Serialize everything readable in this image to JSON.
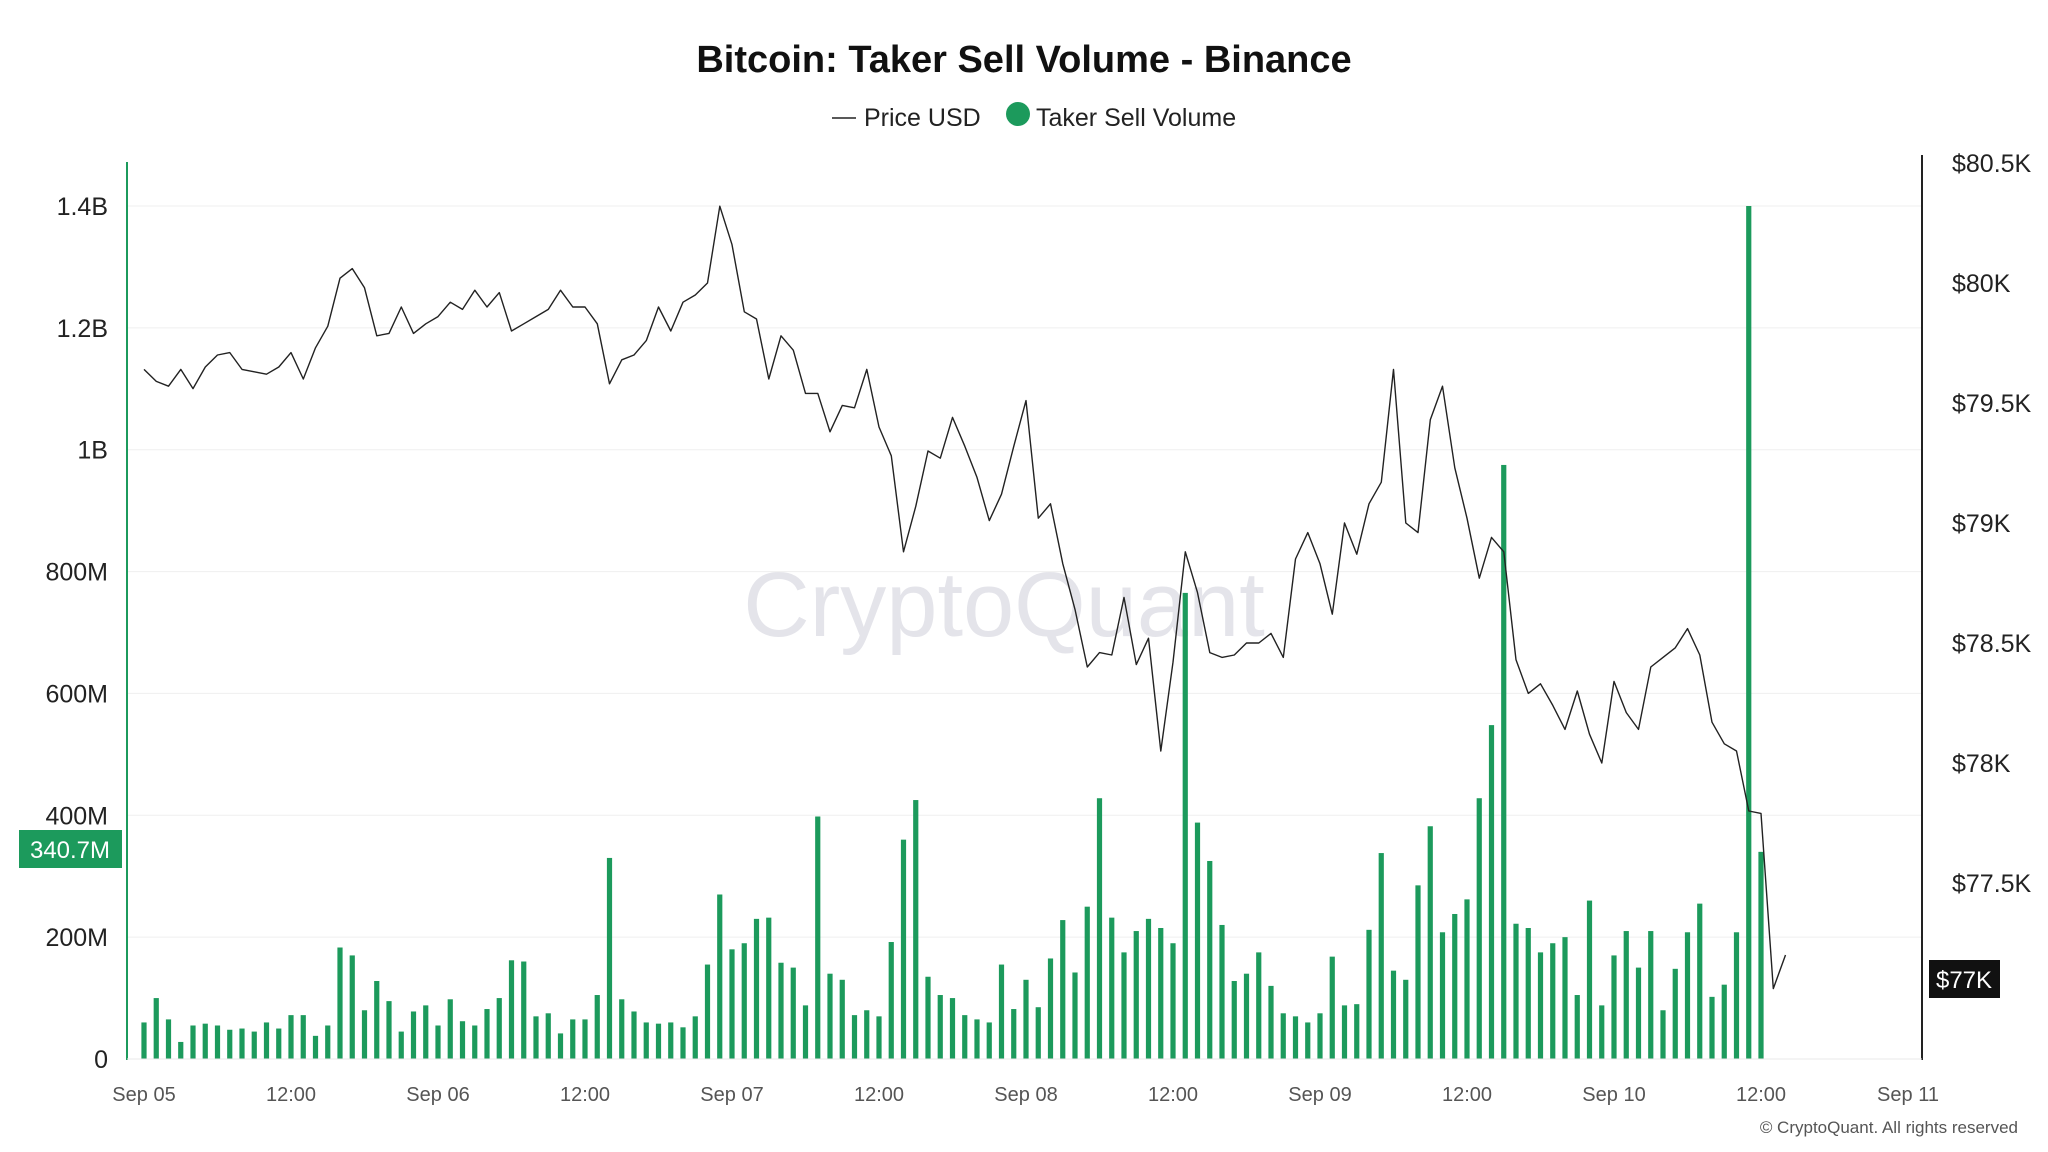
{
  "chart_data": {
    "type": "bar+line",
    "title": "Bitcoin: Taker Sell Volume - Binance",
    "legend": [
      {
        "name": "Price USD",
        "symbol": "line",
        "color": "#222222"
      },
      {
        "name": "Taker Sell Volume",
        "symbol": "dot",
        "color": "#1c9a5c"
      }
    ],
    "legend_position": "top-center",
    "grid": "horizontal",
    "watermark": "CryptoQuant",
    "copyright": "© CryptoQuant. All rights reserved",
    "x_ticks": [
      "Sep 05",
      "12:00",
      "Sep 06",
      "12:00",
      "Sep 07",
      "12:00",
      "Sep 08",
      "12:00",
      "Sep 09",
      "12:00",
      "Sep 10",
      "12:00",
      "Sep 11"
    ],
    "x_range_hours": [
      0,
      144
    ],
    "x_start": "Sep 05 00:00",
    "left_axis": {
      "label": "Taker Sell Volume",
      "ylim": [
        0,
        1470000000
      ],
      "ticks": [
        0,
        200000000,
        400000000,
        600000000,
        800000000,
        1000000000,
        1200000000,
        1400000000
      ],
      "tick_labels": [
        "0",
        "200M",
        "400M",
        "600M",
        "800M",
        "1B",
        "1.2B",
        "1.4B"
      ],
      "current_label": "340.7M",
      "current_value": 340700000
    },
    "right_axis": {
      "label": "Price USD",
      "ylim": [
        76850,
        80500
      ],
      "ticks": [
        77000,
        77500,
        78000,
        78500,
        79000,
        79500,
        80000,
        80500
      ],
      "tick_labels": [
        "$77K",
        "$77.5K",
        "$78K",
        "$78.5K",
        "$79K",
        "$79.5K",
        "$80K",
        "$80.5K"
      ],
      "current_label": "$77K"
    },
    "series": [
      {
        "name": "Taker Sell Volume",
        "type": "bar",
        "axis": "left",
        "unit": "M",
        "color": "#1c9a5c",
        "values": [
          60,
          100,
          65,
          28,
          55,
          58,
          55,
          48,
          50,
          45,
          60,
          50,
          72,
          72,
          38,
          55,
          183,
          170,
          80,
          128,
          95,
          45,
          78,
          88,
          55,
          98,
          62,
          55,
          82,
          100,
          162,
          160,
          70,
          75,
          42,
          65,
          65,
          105,
          330,
          98,
          78,
          60,
          58,
          60,
          52,
          70,
          155,
          270,
          180,
          190,
          230,
          232,
          158,
          150,
          88,
          398,
          140,
          130,
          72,
          80,
          70,
          192,
          360,
          425,
          135,
          105,
          100,
          72,
          65,
          60,
          155,
          82,
          130,
          85,
          165,
          228,
          142,
          250,
          428,
          232,
          175,
          210,
          230,
          215,
          190,
          765,
          388,
          325,
          220,
          128,
          140,
          175,
          120,
          75,
          70,
          60,
          75,
          168,
          88,
          90,
          212,
          338,
          145,
          130,
          285,
          382,
          208,
          238,
          262,
          428,
          548,
          975,
          222,
          215,
          175,
          190,
          200,
          105,
          260,
          88,
          170,
          210,
          150,
          210,
          80,
          148,
          208,
          255,
          102,
          122,
          208,
          1400,
          340
        ]
      },
      {
        "name": "Price USD",
        "type": "line",
        "axis": "right",
        "color": "#222222",
        "x_hours": [
          0,
          1,
          2,
          3,
          4,
          5,
          6,
          7,
          8,
          9,
          10,
          11,
          12,
          13,
          14,
          15,
          16,
          17,
          18,
          19,
          20,
          21,
          22,
          23,
          24,
          25,
          26,
          27,
          28,
          29,
          30,
          31,
          32,
          33,
          34,
          35,
          36,
          37,
          38,
          39,
          40,
          41,
          42,
          43,
          44,
          45,
          46,
          47,
          48,
          49,
          50,
          51,
          52,
          53,
          54,
          55,
          56,
          57,
          58,
          59,
          60,
          61,
          62,
          63,
          64,
          65,
          66,
          67,
          68,
          69,
          70,
          71,
          72,
          73,
          74,
          75,
          76,
          77,
          78,
          79,
          80,
          81,
          82,
          83,
          84,
          85,
          86,
          87,
          88,
          89,
          90,
          91,
          92,
          93,
          94,
          95,
          96,
          97,
          98,
          99,
          100,
          101,
          102,
          103,
          104,
          105,
          106,
          107,
          108,
          109,
          110,
          111,
          112,
          113,
          114,
          115,
          116,
          117,
          118,
          119,
          120,
          121,
          122,
          123,
          124,
          125,
          126,
          127,
          128,
          129,
          130,
          131,
          132,
          133,
          134
        ],
        "values": [
          79640,
          79590,
          79570,
          79640,
          79560,
          79650,
          79700,
          79710,
          79640,
          79630,
          79620,
          79650,
          79710,
          79600,
          79730,
          79820,
          80020,
          80060,
          79980,
          79780,
          79790,
          79900,
          79790,
          79830,
          79860,
          79920,
          79890,
          79970,
          79900,
          79960,
          79800,
          79830,
          79860,
          79890,
          79970,
          79900,
          79900,
          79830,
          79580,
          79680,
          79700,
          79760,
          79900,
          79800,
          79920,
          79950,
          80000,
          80320,
          80160,
          79880,
          79850,
          79600,
          79780,
          79720,
          79540,
          79540,
          79380,
          79490,
          79480,
          79640,
          79400,
          79280,
          78880,
          79070,
          79300,
          79270,
          79440,
          79320,
          79190,
          79010,
          79120,
          79320,
          79510,
          79020,
          79080,
          78830,
          78640,
          78400,
          78460,
          78450,
          78690,
          78410,
          78520,
          78050,
          78420,
          78880,
          78710,
          78460,
          78440,
          78450,
          78500,
          78500,
          78540,
          78440,
          78850,
          78960,
          78830,
          78620,
          79000,
          78870,
          79080,
          79170,
          79640,
          79000,
          78960,
          79430,
          79570,
          79230,
          79020,
          78770,
          78940,
          78880,
          78430,
          78290,
          78330,
          78240,
          78140,
          78300,
          78120,
          78000,
          78340,
          78210,
          78140,
          78400,
          78440,
          78480,
          78560,
          78450,
          78170,
          78080,
          78050,
          77800,
          77790,
          77060,
          77200
        ]
      }
    ]
  }
}
